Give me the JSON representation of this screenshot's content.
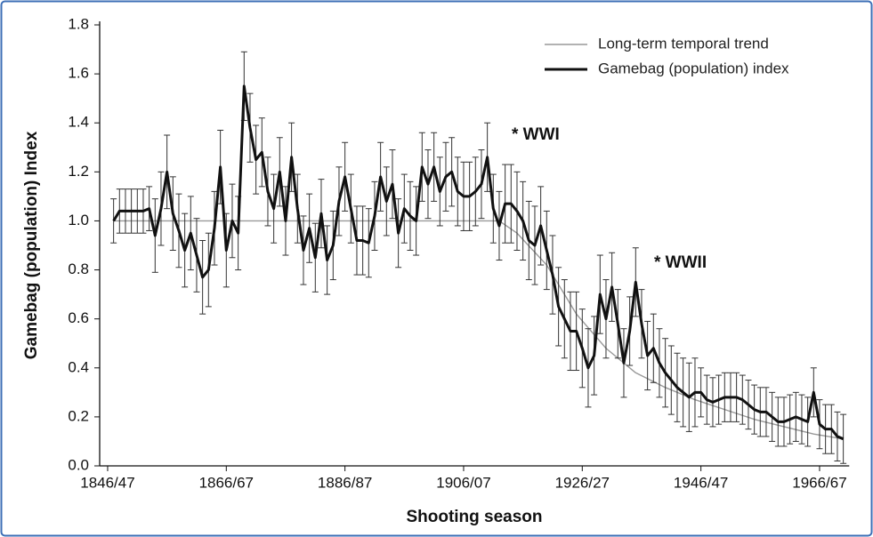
{
  "chart_data": {
    "type": "line",
    "xlabel": "Shooting season",
    "ylabel": "Gamebag (population) Index",
    "xlim": [
      1845,
      1971
    ],
    "ylim": [
      0,
      1.8
    ],
    "xticks": [
      {
        "value": 1846,
        "label": "1846/47"
      },
      {
        "value": 1866,
        "label": "1866/67"
      },
      {
        "value": 1886,
        "label": "1886/87"
      },
      {
        "value": 1906,
        "label": "1906/07"
      },
      {
        "value": 1926,
        "label": "1926/27"
      },
      {
        "value": 1946,
        "label": "1946/47"
      },
      {
        "value": 1966,
        "label": "1966/67"
      }
    ],
    "yticks": [
      {
        "value": 0,
        "label": "0.0"
      },
      {
        "value": 0.2,
        "label": "0.2"
      },
      {
        "value": 0.4,
        "label": "0.4"
      },
      {
        "value": 0.6,
        "label": "0.6"
      },
      {
        "value": 0.8,
        "label": "0.8"
      },
      {
        "value": 1,
        "label": "1.0"
      },
      {
        "value": 1.2,
        "label": "1.2"
      },
      {
        "value": 1.4,
        "label": "1.4"
      },
      {
        "value": 1.6,
        "label": "1.6"
      },
      {
        "value": 1.8,
        "label": "1.8"
      }
    ],
    "legend_position": "upper right",
    "annotations": [
      "* WWI",
      "* WWII"
    ],
    "series": [
      {
        "name": "Long-term temporal trend",
        "color": "#999999",
        "x": [
          1847,
          1912,
          1915,
          1920,
          1925,
          1930,
          1935,
          1940,
          1945,
          1950,
          1955,
          1960,
          1965,
          1970
        ],
        "values": [
          1.0,
          1.0,
          0.95,
          0.82,
          0.62,
          0.48,
          0.38,
          0.32,
          0.27,
          0.23,
          0.19,
          0.16,
          0.13,
          0.11
        ]
      },
      {
        "name": "Gamebag (population) index",
        "color": "#111111",
        "x": [
          1847,
          1848,
          1849,
          1850,
          1851,
          1852,
          1853,
          1854,
          1855,
          1856,
          1857,
          1858,
          1859,
          1860,
          1861,
          1862,
          1863,
          1864,
          1865,
          1866,
          1867,
          1868,
          1869,
          1870,
          1871,
          1872,
          1873,
          1874,
          1875,
          1876,
          1877,
          1878,
          1879,
          1880,
          1881,
          1882,
          1883,
          1884,
          1885,
          1886,
          1887,
          1888,
          1889,
          1890,
          1891,
          1892,
          1893,
          1894,
          1895,
          1896,
          1897,
          1898,
          1899,
          1900,
          1901,
          1902,
          1903,
          1904,
          1905,
          1906,
          1907,
          1908,
          1909,
          1910,
          1911,
          1912,
          1913,
          1914,
          1915,
          1916,
          1917,
          1918,
          1919,
          1920,
          1921,
          1922,
          1923,
          1924,
          1925,
          1926,
          1927,
          1928,
          1929,
          1930,
          1931,
          1932,
          1933,
          1934,
          1935,
          1936,
          1937,
          1938,
          1939,
          1940,
          1941,
          1942,
          1943,
          1944,
          1945,
          1946,
          1947,
          1948,
          1949,
          1950,
          1951,
          1952,
          1953,
          1954,
          1955,
          1956,
          1957,
          1958,
          1959,
          1960,
          1961,
          1962,
          1963,
          1964,
          1965,
          1966,
          1967,
          1968,
          1969,
          1970
        ],
        "values": [
          1.0,
          1.04,
          1.04,
          1.04,
          1.04,
          1.04,
          1.05,
          0.94,
          1.05,
          1.2,
          1.03,
          0.96,
          0.88,
          0.95,
          0.86,
          0.77,
          0.8,
          0.97,
          1.22,
          0.88,
          1.0,
          0.95,
          1.55,
          1.38,
          1.25,
          1.28,
          1.12,
          1.05,
          1.2,
          1.0,
          1.26,
          1.05,
          0.88,
          0.97,
          0.85,
          1.03,
          0.84,
          0.9,
          1.08,
          1.18,
          1.05,
          0.92,
          0.92,
          0.91,
          1.02,
          1.18,
          1.08,
          1.15,
          0.95,
          1.05,
          1.02,
          1.0,
          1.22,
          1.15,
          1.22,
          1.12,
          1.18,
          1.2,
          1.12,
          1.1,
          1.1,
          1.12,
          1.15,
          1.26,
          1.05,
          0.98,
          1.07,
          1.07,
          1.04,
          1.0,
          0.92,
          0.9,
          0.98,
          0.88,
          0.78,
          0.65,
          0.6,
          0.55,
          0.55,
          0.48,
          0.4,
          0.45,
          0.7,
          0.6,
          0.73,
          0.58,
          0.42,
          0.55,
          0.75,
          0.58,
          0.45,
          0.48,
          0.42,
          0.38,
          0.35,
          0.32,
          0.3,
          0.28,
          0.3,
          0.3,
          0.27,
          0.26,
          0.27,
          0.28,
          0.28,
          0.28,
          0.27,
          0.25,
          0.23,
          0.22,
          0.22,
          0.2,
          0.18,
          0.18,
          0.19,
          0.2,
          0.19,
          0.18,
          0.3,
          0.17,
          0.15,
          0.15,
          0.12,
          0.11
        ],
        "errors": [
          0.09,
          0.09,
          0.09,
          0.09,
          0.09,
          0.09,
          0.09,
          0.15,
          0.15,
          0.15,
          0.15,
          0.15,
          0.15,
          0.15,
          0.15,
          0.15,
          0.15,
          0.15,
          0.15,
          0.15,
          0.15,
          0.15,
          0.14,
          0.14,
          0.14,
          0.14,
          0.14,
          0.14,
          0.14,
          0.14,
          0.14,
          0.14,
          0.14,
          0.14,
          0.14,
          0.14,
          0.14,
          0.14,
          0.14,
          0.14,
          0.14,
          0.14,
          0.14,
          0.14,
          0.14,
          0.14,
          0.14,
          0.14,
          0.14,
          0.14,
          0.14,
          0.14,
          0.14,
          0.14,
          0.14,
          0.14,
          0.14,
          0.14,
          0.14,
          0.14,
          0.14,
          0.14,
          0.14,
          0.14,
          0.14,
          0.14,
          0.16,
          0.16,
          0.16,
          0.16,
          0.16,
          0.16,
          0.16,
          0.16,
          0.16,
          0.16,
          0.16,
          0.16,
          0.16,
          0.16,
          0.16,
          0.16,
          0.16,
          0.16,
          0.14,
          0.14,
          0.14,
          0.14,
          0.14,
          0.14,
          0.14,
          0.14,
          0.14,
          0.14,
          0.14,
          0.14,
          0.14,
          0.14,
          0.14,
          0.1,
          0.1,
          0.1,
          0.1,
          0.1,
          0.1,
          0.1,
          0.1,
          0.1,
          0.1,
          0.1,
          0.1,
          0.1,
          0.1,
          0.1,
          0.1,
          0.1,
          0.1,
          0.1,
          0.1,
          0.1,
          0.1,
          0.1,
          0.1,
          0.1
        ]
      }
    ]
  }
}
